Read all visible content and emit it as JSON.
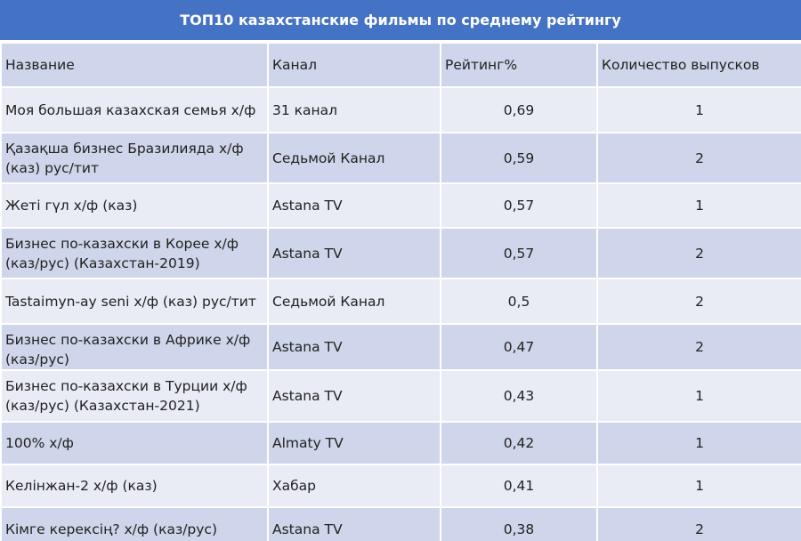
{
  "title": "ТОП10 казахстанские фильмы по среднему рейтингу",
  "headers": {
    "name": "Название",
    "channel": "Канал",
    "rating": "Рейтинг%",
    "episodes": "Количество выпусков"
  },
  "rows": [
    {
      "name": "Моя большая казахская семья х/ф",
      "channel": "31 канал",
      "rating": "0,69",
      "episodes": "1"
    },
    {
      "name": "Қазақша бизнес Бразилияда х/ф (каз) рус/тит",
      "channel": "Седьмой Канал",
      "rating": "0,59",
      "episodes": "2"
    },
    {
      "name": "Жеті гүл х/ф (каз)",
      "channel": "Astana TV",
      "rating": "0,57",
      "episodes": "1"
    },
    {
      "name": "Бизнес по-казахски в Корее х/ф (каз/рус) (Казахстан-2019)",
      "channel": "Astana TV",
      "rating": "0,57",
      "episodes": "2"
    },
    {
      "name": "Tastaimyn-ay seni х/ф (каз) рус/тит",
      "channel": "Седьмой Канал",
      "rating": "0,5",
      "episodes": "2"
    },
    {
      "name": "Бизнес по-казахски в Африке х/ф (каз/рус)",
      "channel": "Astana TV",
      "rating": "0,47",
      "episodes": "2"
    },
    {
      "name": "Бизнес по-казахски в Турции х/ф (каз/рус) (Казахстан-2021)",
      "channel": "Astana TV",
      "rating": "0,43",
      "episodes": "1"
    },
    {
      "name": "100% х/ф",
      "channel": "Almaty TV",
      "rating": "0,42",
      "episodes": "1"
    },
    {
      "name": "Келінжан-2 х/ф (каз)",
      "channel": "Хабар",
      "rating": "0,41",
      "episodes": "1"
    },
    {
      "name": "Кімге керексің? х/ф (каз/рус)",
      "channel": "Astana TV",
      "rating": "0,38",
      "episodes": "2"
    }
  ],
  "colors": {
    "title_bg": "#4472c4",
    "row_light": "#e9ebf5",
    "row_dark": "#cfd5ea"
  }
}
